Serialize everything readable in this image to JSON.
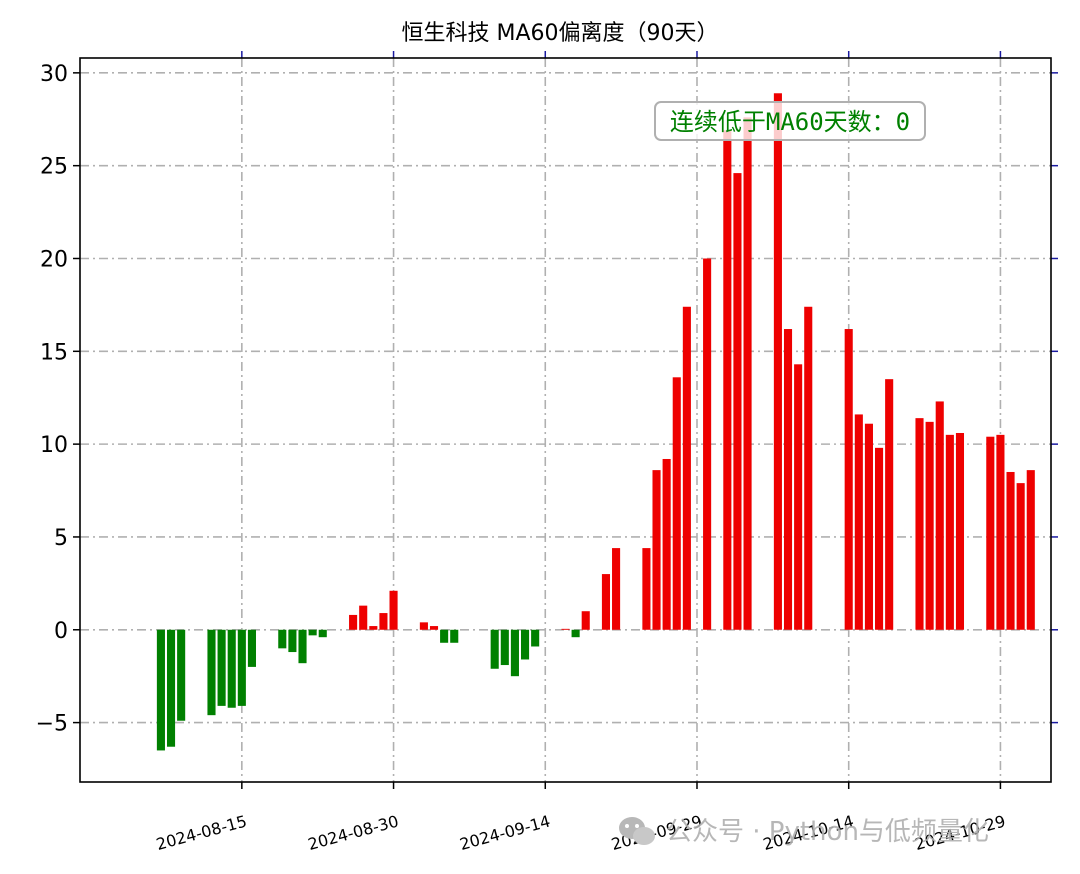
{
  "watermark": {
    "text": "公众号 · Python与低频量化",
    "icon": "wechat-icon"
  },
  "chart_data": {
    "type": "bar",
    "title": "恒生科技 MA60偏离度（90天）",
    "xlabel": "",
    "ylabel": "",
    "ylim": [
      -8.2,
      30.8
    ],
    "xlim": [
      "2024-07-30",
      "2024-11-03"
    ],
    "yticks": [
      -5,
      0,
      5,
      10,
      15,
      20,
      25,
      30
    ],
    "ytick_labels": [
      "−5",
      "0",
      "5",
      "10",
      "15",
      "20",
      "25",
      "30"
    ],
    "xticks": [
      "2024-08-15",
      "2024-08-30",
      "2024-09-14",
      "2024-09-29",
      "2024-10-14",
      "2024-10-29"
    ],
    "xtick_rotation_deg": 15,
    "grid": true,
    "grid_style": "dash-dot",
    "colors": {
      "positive": "#ee0000",
      "negative": "#008000",
      "annotation": "#008000",
      "grid": "#b0b0b0"
    },
    "annotation": {
      "text": "连续低于MA60天数：0",
      "position": "top-center"
    },
    "bars": [
      {
        "date": "2024-08-07",
        "value": -6.5
      },
      {
        "date": "2024-08-08",
        "value": -6.3
      },
      {
        "date": "2024-08-09",
        "value": -4.9
      },
      {
        "date": "2024-08-12",
        "value": -4.6
      },
      {
        "date": "2024-08-13",
        "value": -4.1
      },
      {
        "date": "2024-08-14",
        "value": -4.2
      },
      {
        "date": "2024-08-15",
        "value": -4.1
      },
      {
        "date": "2024-08-16",
        "value": -2.0
      },
      {
        "date": "2024-08-19",
        "value": -1.0
      },
      {
        "date": "2024-08-20",
        "value": -1.2
      },
      {
        "date": "2024-08-21",
        "value": -1.8
      },
      {
        "date": "2024-08-22",
        "value": -0.3
      },
      {
        "date": "2024-08-23",
        "value": -0.4
      },
      {
        "date": "2024-08-26",
        "value": 0.8
      },
      {
        "date": "2024-08-27",
        "value": 1.3
      },
      {
        "date": "2024-08-28",
        "value": 0.2
      },
      {
        "date": "2024-08-29",
        "value": 0.9
      },
      {
        "date": "2024-08-30",
        "value": 2.1
      },
      {
        "date": "2024-09-02",
        "value": 0.4
      },
      {
        "date": "2024-09-03",
        "value": 0.2
      },
      {
        "date": "2024-09-04",
        "value": -0.7
      },
      {
        "date": "2024-09-05",
        "value": -0.7
      },
      {
        "date": "2024-09-09",
        "value": -2.1
      },
      {
        "date": "2024-09-10",
        "value": -1.9
      },
      {
        "date": "2024-09-11",
        "value": -2.5
      },
      {
        "date": "2024-09-12",
        "value": -1.6
      },
      {
        "date": "2024-09-13",
        "value": -0.9
      },
      {
        "date": "2024-09-16",
        "value": 0.05
      },
      {
        "date": "2024-09-17",
        "value": -0.4
      },
      {
        "date": "2024-09-18",
        "value": 1.0
      },
      {
        "date": "2024-09-20",
        "value": 3.0
      },
      {
        "date": "2024-09-21",
        "value": 4.4
      },
      {
        "date": "2024-09-24",
        "value": 4.4
      },
      {
        "date": "2024-09-25",
        "value": 8.6
      },
      {
        "date": "2024-09-26",
        "value": 9.2
      },
      {
        "date": "2024-09-27",
        "value": 13.6
      },
      {
        "date": "2024-09-28",
        "value": 17.4
      },
      {
        "date": "2024-09-30",
        "value": 20.0
      },
      {
        "date": "2024-10-02",
        "value": 26.9
      },
      {
        "date": "2024-10-03",
        "value": 24.6
      },
      {
        "date": "2024-10-04",
        "value": 27.6
      },
      {
        "date": "2024-10-07",
        "value": 28.9
      },
      {
        "date": "2024-10-08",
        "value": 16.2
      },
      {
        "date": "2024-10-09",
        "value": 14.3
      },
      {
        "date": "2024-10-10",
        "value": 17.4
      },
      {
        "date": "2024-10-14",
        "value": 16.2
      },
      {
        "date": "2024-10-15",
        "value": 11.6
      },
      {
        "date": "2024-10-16",
        "value": 11.1
      },
      {
        "date": "2024-10-17",
        "value": 9.8
      },
      {
        "date": "2024-10-18",
        "value": 13.5
      },
      {
        "date": "2024-10-21",
        "value": 11.4
      },
      {
        "date": "2024-10-22",
        "value": 11.2
      },
      {
        "date": "2024-10-23",
        "value": 12.3
      },
      {
        "date": "2024-10-24",
        "value": 10.5
      },
      {
        "date": "2024-10-25",
        "value": 10.6
      },
      {
        "date": "2024-10-28",
        "value": 10.4
      },
      {
        "date": "2024-10-29",
        "value": 10.5
      },
      {
        "date": "2024-10-30",
        "value": 8.5
      },
      {
        "date": "2024-10-31",
        "value": 7.9
      },
      {
        "date": "2024-11-01",
        "value": 8.6
      }
    ]
  }
}
